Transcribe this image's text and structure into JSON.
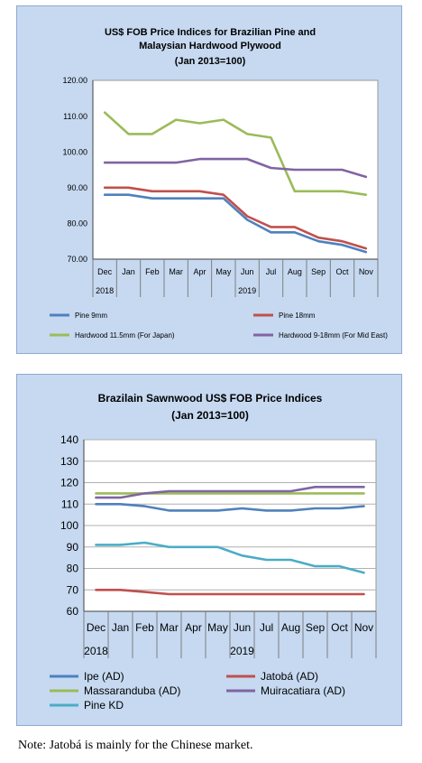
{
  "note": "Note: Jatobá is mainly for the Chinese market.",
  "colors": {
    "blue": "#4f81bd",
    "red": "#c0504d",
    "green": "#9bbb59",
    "purple": "#8064a2",
    "cyan": "#4bacc6",
    "background": "#c6d9f1"
  },
  "chart_data": [
    {
      "type": "line",
      "title_lines": [
        "US$ FOB Price Indices for Brazilian Pine and",
        "Malaysian Hardwood Plywood",
        "(Jan 2013=100)"
      ],
      "categories": [
        "Dec",
        "Jan",
        "Feb",
        "Mar",
        "Apr",
        "May",
        "Jun",
        "Jul",
        "Aug",
        "Sep",
        "Oct",
        "Nov"
      ],
      "year_labels": [
        "2018",
        "2019"
      ],
      "y_ticks": [
        "120.00",
        "110.00",
        "100.00",
        "90.00",
        "80.00",
        "70.00"
      ],
      "ylim": [
        70,
        120
      ],
      "grid": false,
      "legend_position": "bottom",
      "series": [
        {
          "name": "Pine 9mm",
          "color": "#4f81bd",
          "values": [
            88,
            88,
            87,
            87,
            87,
            87,
            81,
            77.5,
            77.5,
            75,
            74,
            72
          ]
        },
        {
          "name": "Pine 18mm",
          "color": "#c0504d",
          "values": [
            90,
            90,
            89,
            89,
            89,
            88,
            82,
            79,
            79,
            76,
            75,
            73
          ]
        },
        {
          "name": "Hardwood 11.5mm (For Japan)",
          "color": "#9bbb59",
          "values": [
            111,
            105,
            105,
            109,
            108,
            109,
            105,
            104,
            89,
            89,
            89,
            88
          ]
        },
        {
          "name": "Hardwood 9-18mm (For Mid East)",
          "color": "#8064a2",
          "values": [
            97,
            97,
            97,
            97,
            98,
            98,
            98,
            95.5,
            95,
            95,
            95,
            93
          ]
        }
      ]
    },
    {
      "type": "line",
      "title_lines": [
        "Brazilain Sawnwood US$ FOB Price Indices",
        "(Jan 2013=100)"
      ],
      "categories": [
        "Dec",
        "Jan",
        "Feb",
        "Mar",
        "Apr",
        "May",
        "Jun",
        "Jul",
        "Aug",
        "Sep",
        "Oct",
        "Nov"
      ],
      "year_labels": [
        "2018",
        "2019"
      ],
      "y_ticks": [
        "140",
        "130",
        "120",
        "110",
        "100",
        "90",
        "80",
        "70",
        "60"
      ],
      "ylim": [
        60,
        140
      ],
      "grid": true,
      "legend_position": "bottom",
      "series": [
        {
          "name": "Ipe (AD)",
          "color": "#4f81bd",
          "values": [
            110,
            110,
            109,
            107,
            107,
            107,
            108,
            107,
            107,
            108,
            108,
            109
          ]
        },
        {
          "name": "Jatobá (AD)",
          "color": "#c0504d",
          "values": [
            70,
            70,
            69,
            68,
            68,
            68,
            68,
            68,
            68,
            68,
            68,
            68
          ]
        },
        {
          "name": "Massaranduba (AD)",
          "color": "#9bbb59",
          "values": [
            115,
            115,
            115,
            115,
            115,
            115,
            115,
            115,
            115,
            115,
            115,
            115
          ]
        },
        {
          "name": "Muiracatiara (AD)",
          "color": "#8064a2",
          "values": [
            113,
            113,
            115,
            116,
            116,
            116,
            116,
            116,
            116,
            118,
            118,
            118
          ]
        },
        {
          "name": "Pine KD",
          "color": "#4bacc6",
          "values": [
            91,
            91,
            92,
            90,
            90,
            90,
            86,
            84,
            84,
            81,
            81,
            78
          ]
        }
      ]
    }
  ]
}
